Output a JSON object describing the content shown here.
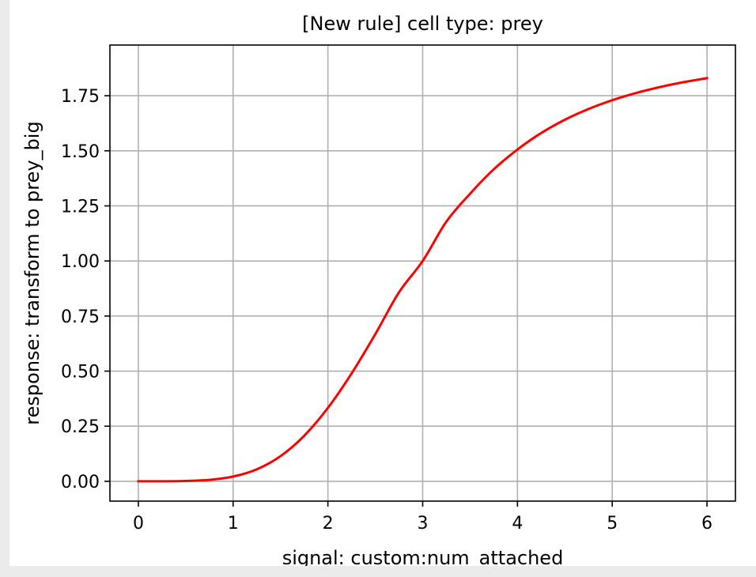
{
  "chart_data": {
    "type": "line",
    "title": "[New rule] cell type: prey",
    "xlabel": "signal: custom:num_attached",
    "ylabel": "response: transform to prey_big",
    "xlim": [
      -0.3,
      6.3
    ],
    "ylim": [
      -0.09,
      1.98
    ],
    "x_ticks": [
      0,
      1,
      2,
      3,
      4,
      5,
      6
    ],
    "x_tick_labels": [
      "0",
      "1",
      "2",
      "3",
      "4",
      "5",
      "6"
    ],
    "y_ticks": [
      0.0,
      0.25,
      0.5,
      0.75,
      1.0,
      1.25,
      1.5,
      1.75
    ],
    "y_tick_labels": [
      "0.00",
      "0.25",
      "0.50",
      "0.75",
      "1.00",
      "1.25",
      "1.50",
      "1.75"
    ],
    "grid": true,
    "series": [
      {
        "color": "#ff0000",
        "x": [
          0,
          0.25,
          0.5,
          0.75,
          1.0,
          1.25,
          1.5,
          1.75,
          2.0,
          2.25,
          2.5,
          2.75,
          3.0,
          3.25,
          3.5,
          3.75,
          4.0,
          4.25,
          4.5,
          4.75,
          5.0,
          5.25,
          5.5,
          5.75,
          6.0
        ],
        "y": [
          0.0,
          0.0002,
          0.0015,
          0.0066,
          0.0216,
          0.0545,
          0.1143,
          0.2068,
          0.3333,
          0.4897,
          0.6679,
          0.8576,
          1.0,
          1.1785,
          1.3052,
          1.416,
          1.5059,
          1.5806,
          1.641,
          1.6898,
          1.7296,
          1.7622,
          1.789,
          1.8113,
          1.8299
        ]
      }
    ]
  }
}
